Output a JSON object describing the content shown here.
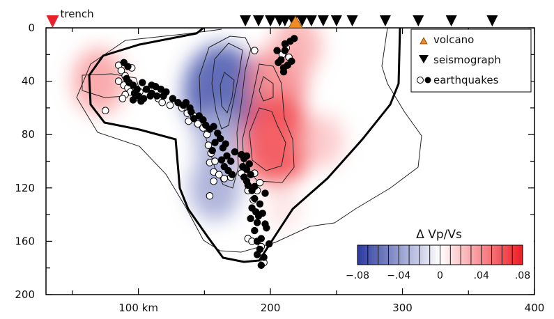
{
  "chart_data": {
    "type": "heatmap",
    "title": "",
    "xlabel": "",
    "ylabel": "",
    "xlim": [
      30,
      400
    ],
    "ylim": [
      0,
      200
    ],
    "y_inverted": true,
    "x_ticks": [
      {
        "value": 100,
        "label": "100 km"
      },
      {
        "value": 200,
        "label": "200"
      },
      {
        "value": 300,
        "label": "300"
      },
      {
        "value": 400,
        "label": "400"
      }
    ],
    "y_ticks": [
      0,
      40,
      80,
      120,
      160,
      200
    ],
    "trench": {
      "x": 35,
      "label": "trench",
      "color": "#e8212b"
    },
    "seismographs": [
      181,
      191,
      200,
      207,
      211,
      217,
      224,
      231,
      240,
      250,
      262,
      287,
      312,
      337,
      368
    ],
    "volcanoes": [
      {
        "x": 219,
        "color": "#f08a24"
      }
    ],
    "legend": {
      "position": "top-right",
      "entries": [
        {
          "label": "volcano",
          "symbol": "triangle-up",
          "color": "#f08a24"
        },
        {
          "label": "seismograph",
          "symbol": "triangle-down",
          "color": "#000000"
        },
        {
          "label": "earthquakes",
          "symbol": "circles-open-filled",
          "color": "#000000"
        }
      ]
    },
    "colorbar": {
      "title": "Δ Vp/Vs",
      "range": [
        -0.08,
        0.08
      ],
      "tick_labels": [
        {
          "value": -0.08,
          "label": "−.08"
        },
        {
          "value": -0.04,
          "label": "−.04"
        },
        {
          "value": 0,
          "label": "0"
        },
        {
          "value": 0.04,
          "label": ".04"
        },
        {
          "value": 0.08,
          "label": ".08"
        }
      ],
      "colors": [
        "#2b3a9f",
        "#ffffff",
        "#ee1c24"
      ]
    },
    "anomalies": [
      {
        "x": 163,
        "y": 48,
        "value": -0.07
      },
      {
        "x": 160,
        "y": 85,
        "value": -0.03
      },
      {
        "x": 158,
        "y": 120,
        "value": -0.035
      },
      {
        "x": 205,
        "y": 42,
        "value": 0.045
      },
      {
        "x": 205,
        "y": 85,
        "value": 0.065
      },
      {
        "x": 70,
        "y": 40,
        "value": 0.035
      },
      {
        "x": 220,
        "y": 14,
        "value": 0.03
      },
      {
        "x": 240,
        "y": 85,
        "value": 0.02
      },
      {
        "x": 210,
        "y": 135,
        "value": 0.01
      }
    ],
    "earthquakes_filled": [
      [
        211,
        12
      ],
      [
        215,
        10
      ],
      [
        218,
        8
      ],
      [
        205,
        17
      ],
      [
        211,
        17
      ],
      [
        206,
        26
      ],
      [
        208,
        24
      ],
      [
        210,
        30
      ],
      [
        213,
        28
      ],
      [
        216,
        25
      ],
      [
        210,
        33
      ],
      [
        89,
        26
      ],
      [
        92,
        29
      ],
      [
        91,
        38
      ],
      [
        93,
        41
      ],
      [
        96,
        43
      ],
      [
        99,
        46
      ],
      [
        97,
        49
      ],
      [
        100,
        51
      ],
      [
        104,
        53
      ],
      [
        102,
        55
      ],
      [
        96,
        54
      ],
      [
        106,
        46
      ],
      [
        110,
        49
      ],
      [
        114,
        51
      ],
      [
        117,
        46
      ],
      [
        119,
        51
      ],
      [
        121,
        48
      ],
      [
        113,
        44
      ],
      [
        103,
        41
      ],
      [
        110,
        43
      ],
      [
        109,
        51
      ],
      [
        126,
        53
      ],
      [
        130,
        56
      ],
      [
        134,
        58
      ],
      [
        136,
        56
      ],
      [
        139,
        60
      ],
      [
        140,
        63
      ],
      [
        142,
        68
      ],
      [
        146,
        66
      ],
      [
        149,
        69
      ],
      [
        151,
        73
      ],
      [
        154,
        76
      ],
      [
        157,
        74
      ],
      [
        160,
        79
      ],
      [
        162,
        83
      ],
      [
        158,
        86
      ],
      [
        164,
        90
      ],
      [
        166,
        87
      ],
      [
        167,
        96
      ],
      [
        170,
        100
      ],
      [
        165,
        104
      ],
      [
        168,
        107
      ],
      [
        173,
        93
      ],
      [
        178,
        95
      ],
      [
        180,
        98
      ],
      [
        182,
        96
      ],
      [
        184,
        102
      ],
      [
        179,
        104
      ],
      [
        182,
        106
      ],
      [
        185,
        110
      ],
      [
        182,
        115
      ],
      [
        186,
        122
      ],
      [
        188,
        128
      ],
      [
        186,
        135
      ],
      [
        189,
        138
      ],
      [
        185,
        143
      ],
      [
        190,
        146
      ],
      [
        188,
        152
      ],
      [
        190,
        160
      ],
      [
        193,
        158
      ],
      [
        192,
        166
      ],
      [
        190,
        170
      ],
      [
        195,
        172
      ],
      [
        193,
        178
      ],
      [
        199,
        162
      ],
      [
        196,
        147
      ],
      [
        194,
        139
      ],
      [
        192,
        132
      ],
      [
        188,
        119
      ],
      [
        197,
        150
      ],
      [
        191,
        141
      ],
      [
        183,
        118
      ],
      [
        180,
        112
      ],
      [
        196,
        124
      ],
      [
        171,
        110
      ],
      [
        163,
        99
      ],
      [
        156,
        92
      ]
    ],
    "earthquakes_open": [
      [
        85,
        28
      ],
      [
        87,
        32
      ],
      [
        90,
        36
      ],
      [
        89,
        43
      ],
      [
        92,
        45
      ],
      [
        94,
        48
      ],
      [
        90,
        50
      ],
      [
        88,
        53
      ],
      [
        98,
        52
      ],
      [
        101,
        48
      ],
      [
        95,
        30
      ],
      [
        85,
        40
      ],
      [
        75,
        62
      ],
      [
        115,
        53
      ],
      [
        118,
        56
      ],
      [
        124,
        58
      ],
      [
        133,
        60
      ],
      [
        137,
        64
      ],
      [
        138,
        70
      ],
      [
        142,
        66
      ],
      [
        145,
        72
      ],
      [
        149,
        75
      ],
      [
        152,
        80
      ],
      [
        153,
        88
      ],
      [
        155,
        94
      ],
      [
        154,
        101
      ],
      [
        158,
        100
      ],
      [
        157,
        108
      ],
      [
        161,
        110
      ],
      [
        165,
        113
      ],
      [
        170,
        112
      ],
      [
        178,
        109
      ],
      [
        188,
        109
      ],
      [
        183,
        122
      ],
      [
        192,
        116
      ],
      [
        190,
        122
      ],
      [
        187,
        129
      ],
      [
        183,
        158
      ],
      [
        186,
        160
      ],
      [
        195,
        176
      ],
      [
        193,
        164
      ],
      [
        212,
        15
      ],
      [
        214,
        22
      ],
      [
        209,
        20
      ],
      [
        188,
        17
      ],
      [
        157,
        115
      ],
      [
        154,
        126
      ]
    ]
  }
}
